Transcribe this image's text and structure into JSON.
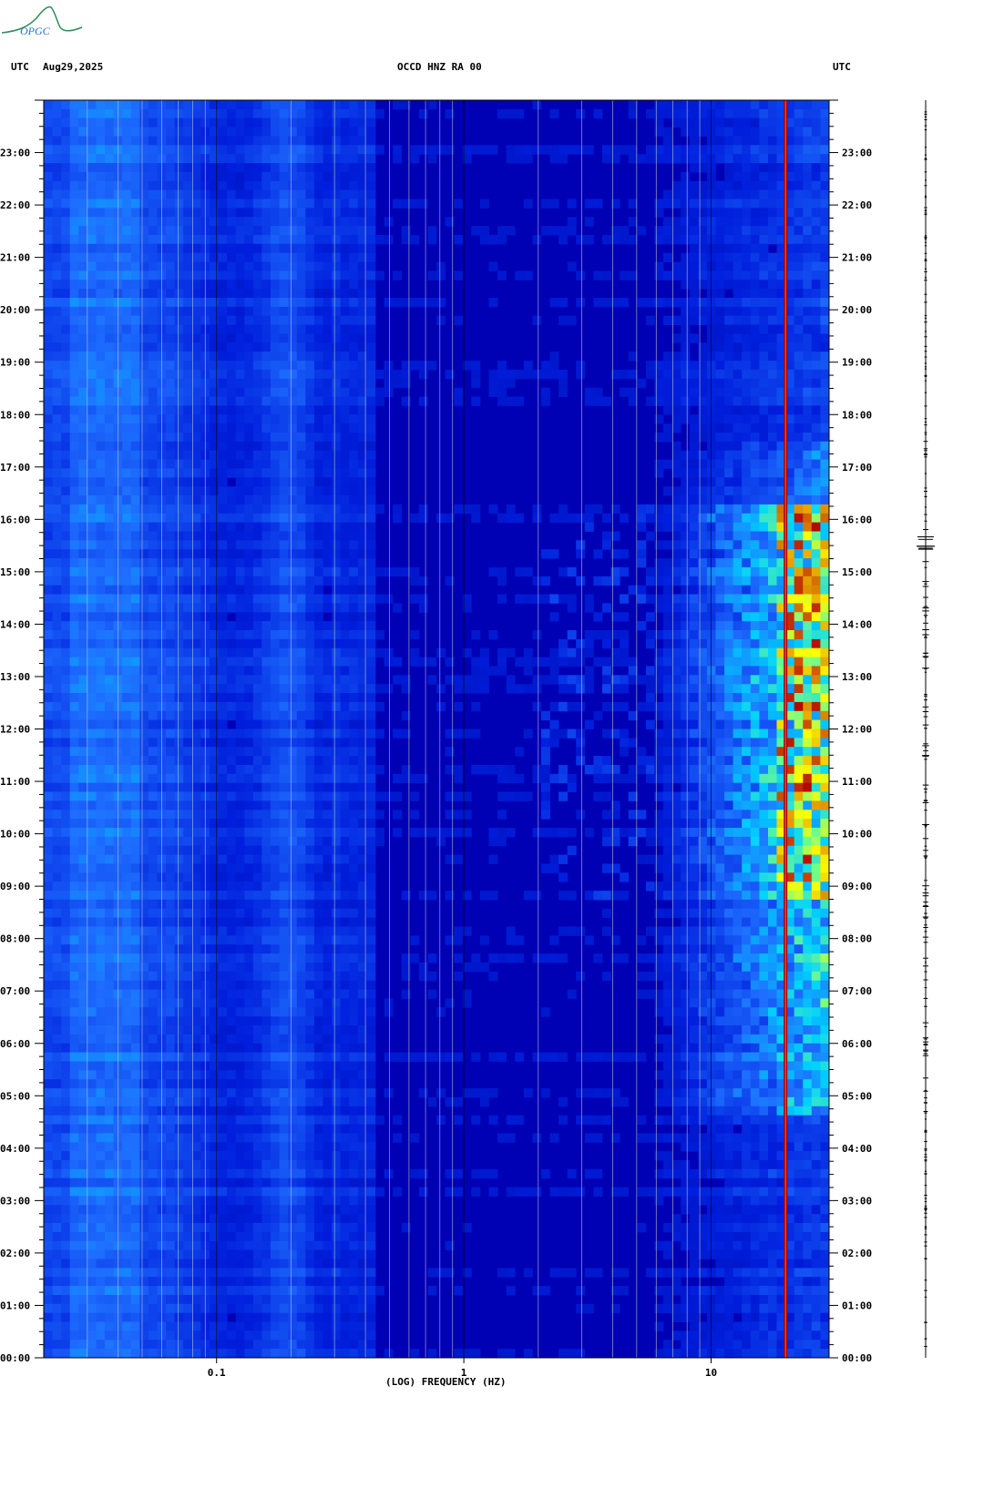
{
  "header": {
    "left_utc": "UTC",
    "date": "Aug29,2025",
    "title": "OCCD HNZ RA 00",
    "right_utc": "UTC"
  },
  "logo": {
    "text": "OPGC",
    "color": "#2e8b57"
  },
  "chart_data": {
    "type": "heatmap",
    "description_scale": "log",
    "x": {
      "label": "(LOG) FREQUENCY (HZ)",
      "scale": "log",
      "range": [
        0.02,
        30
      ],
      "tick_labels": [
        {
          "value": 0.1,
          "label": "0.1"
        },
        {
          "value": 1,
          "label": "1"
        },
        {
          "value": 10,
          "label": "10"
        }
      ]
    },
    "y": {
      "label": "UTC",
      "range_hours": [
        0,
        24
      ],
      "tick_labels": [
        "00:00",
        "01:00",
        "02:00",
        "03:00",
        "04:00",
        "05:00",
        "06:00",
        "07:00",
        "08:00",
        "09:00",
        "10:00",
        "11:00",
        "12:00",
        "13:00",
        "14:00",
        "15:00",
        "16:00",
        "17:00",
        "18:00",
        "19:00",
        "20:00",
        "21:00",
        "22:00",
        "23:00"
      ]
    },
    "colors": {
      "low": "#0000b4",
      "mid": "#2a6cff",
      "high": "#ffff00",
      "max": "#b40000",
      "grid": "#c8c8c8"
    },
    "features": [
      {
        "name": "persistent line",
        "freq_hz": 20,
        "hours": [
          0,
          24
        ],
        "level": "max"
      },
      {
        "name": "low-frequency band",
        "freq_hz": [
          0.025,
          0.05
        ],
        "hours": [
          0,
          24
        ],
        "level": "mid"
      },
      {
        "name": "daytime cultural noise",
        "freq_hz": [
          8,
          30
        ],
        "hours": [
          5,
          16
        ],
        "level": "high"
      }
    ]
  }
}
